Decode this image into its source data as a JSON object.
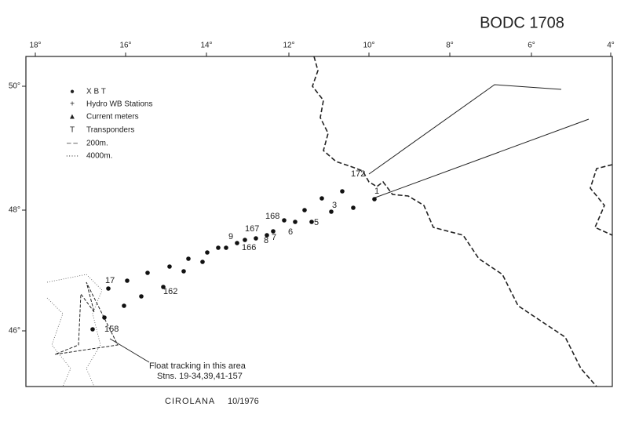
{
  "header": {
    "title": "BODC 1708"
  },
  "map": {
    "longitude_labels": [
      "18°",
      "16°",
      "14°",
      "12°",
      "10°",
      "8°",
      "6°",
      "4°"
    ],
    "latitude_labels": [
      "50°",
      "48°",
      "46°"
    ]
  },
  "legend": [
    "X B T",
    "Hydro WB Stations",
    "Current meters",
    "Transponders",
    "200m.",
    "4000m."
  ],
  "station_labels": [
    "172",
    "1",
    "3",
    "5",
    "6",
    "168",
    "167",
    "7",
    "8",
    "9",
    "166",
    "17",
    "162",
    "158"
  ],
  "annotation": {
    "line1": "Float tracking in this area",
    "line2": "Stns. 19-34,39,41-157"
  },
  "footer": {
    "ship": "CIROLANA",
    "date": "10/1976"
  }
}
